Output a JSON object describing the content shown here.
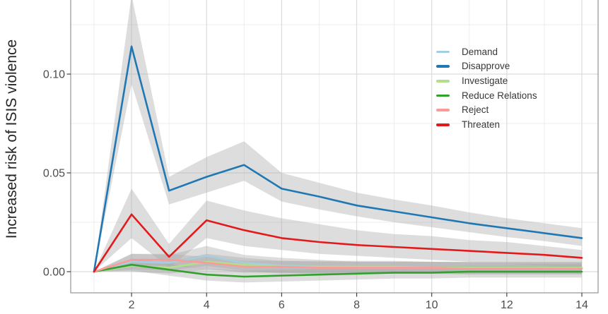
{
  "chart_data": {
    "type": "line",
    "title": "",
    "xlabel": "",
    "ylabel": "Increased risk of ISIS violence",
    "grid": "major and minor gridlines on white panel",
    "legend_position": "inside top-right",
    "band_fill": "#ababab",
    "band_opacity": 0.4,
    "x": [
      1,
      2,
      3,
      4,
      5,
      6,
      7,
      8,
      9,
      10,
      11,
      12,
      13,
      14
    ],
    "x_domain": [
      1,
      14
    ],
    "x_tick_values": [
      2,
      4,
      6,
      8,
      10,
      12,
      14
    ],
    "x_tick_labels": [
      "2",
      "4",
      "6",
      "8",
      "10",
      "12",
      "14"
    ],
    "x_minor_values": [
      1,
      3,
      5,
      7,
      9,
      11,
      13
    ],
    "y_visible_range": [
      -0.011,
      0.1375
    ],
    "y_ticks": [
      {
        "value": 0.0,
        "label": "0.00"
      },
      {
        "value": 0.05,
        "label": "0.05"
      },
      {
        "value": 0.1,
        "label": "0.10"
      }
    ],
    "y_minor_values": [
      0.025,
      0.075,
      0.125
    ],
    "series": [
      {
        "name": "Demand",
        "color": "#a6cee3",
        "values": [
          0,
          0.005,
          0.0045,
          0.008,
          0.0045,
          0.003,
          0.0025,
          0.002,
          0.002,
          0.002,
          0.002,
          0.0015,
          0.0015,
          0.0015
        ],
        "lower": [
          0,
          0.001,
          0.0005,
          0.003,
          0.0005,
          -0.001,
          -0.001,
          -0.001,
          -0.001,
          -0.001,
          -0.001,
          -0.001,
          -0.001,
          -0.001
        ],
        "upper": [
          0,
          0.009,
          0.0085,
          0.013,
          0.0085,
          0.007,
          0.006,
          0.005,
          0.005,
          0.005,
          0.005,
          0.004,
          0.004,
          0.004
        ]
      },
      {
        "name": "Disapprove",
        "color": "#1f78b4",
        "values": [
          0,
          0.114,
          0.041,
          0.048,
          0.054,
          0.042,
          0.038,
          0.0335,
          0.0305,
          0.0275,
          0.0245,
          0.022,
          0.0195,
          0.017
        ],
        "lower": [
          0,
          0.095,
          0.034,
          0.04,
          0.046,
          0.0355,
          0.0315,
          0.028,
          0.025,
          0.0225,
          0.02,
          0.0175,
          0.0155,
          0.013
        ],
        "upper": [
          0,
          0.14,
          0.048,
          0.058,
          0.066,
          0.05,
          0.045,
          0.04,
          0.0365,
          0.0335,
          0.03,
          0.027,
          0.0245,
          0.022
        ]
      },
      {
        "name": "Investigate",
        "color": "#b2df8a",
        "values": [
          0,
          0.003,
          0.002,
          0.005,
          0.0035,
          0.0025,
          0.0025,
          0.0025,
          0.0025,
          0.002,
          0.002,
          0.002,
          0.002,
          0.002
        ],
        "lower": [
          0,
          0.0,
          -0.001,
          0.001,
          0.0,
          -0.0005,
          -0.0005,
          -0.0005,
          -0.0005,
          -0.001,
          -0.001,
          -0.001,
          -0.001,
          -0.001
        ],
        "upper": [
          0,
          0.006,
          0.005,
          0.009,
          0.007,
          0.0055,
          0.0055,
          0.0055,
          0.0055,
          0.005,
          0.005,
          0.005,
          0.005,
          0.005
        ]
      },
      {
        "name": "Reduce Relations",
        "color": "#33a02c",
        "values": [
          0,
          0.0035,
          0.001,
          -0.0015,
          -0.0025,
          -0.002,
          -0.0015,
          -0.001,
          -0.0005,
          -0.0005,
          0,
          0,
          0,
          0
        ],
        "lower": [
          0,
          0.0005,
          -0.002,
          -0.0045,
          -0.0055,
          -0.005,
          -0.0045,
          -0.004,
          -0.0035,
          -0.0035,
          -0.003,
          -0.003,
          -0.003,
          -0.003
        ],
        "upper": [
          0,
          0.0065,
          0.004,
          0.0015,
          0.0005,
          0.001,
          0.0015,
          0.002,
          0.0025,
          0.0025,
          0.003,
          0.003,
          0.003,
          0.003
        ]
      },
      {
        "name": "Reject",
        "color": "#fb9a99",
        "values": [
          0,
          0.006,
          0.006,
          0.0045,
          0.0025,
          0.0025,
          0.002,
          0.002,
          0.002,
          0.002,
          0.0015,
          0.0015,
          0.0015,
          0.0015
        ],
        "lower": [
          0,
          0.003,
          0.003,
          0.0015,
          -0.0005,
          -0.0005,
          -0.001,
          -0.001,
          -0.001,
          -0.001,
          -0.0015,
          -0.0015,
          -0.0015,
          -0.0015
        ],
        "upper": [
          0,
          0.009,
          0.009,
          0.0075,
          0.0055,
          0.0055,
          0.005,
          0.005,
          0.005,
          0.005,
          0.0045,
          0.0045,
          0.0045,
          0.0045
        ]
      },
      {
        "name": "Threaten",
        "color": "#e31a1c",
        "values": [
          0,
          0.029,
          0.0075,
          0.026,
          0.021,
          0.017,
          0.015,
          0.0135,
          0.0125,
          0.0115,
          0.0105,
          0.0095,
          0.0085,
          0.007
        ],
        "lower": [
          0,
          0.017,
          0.002,
          0.017,
          0.013,
          0.011,
          0.009,
          0.008,
          0.007,
          0.006,
          0.005,
          0.004,
          0.003,
          0.002
        ],
        "upper": [
          0,
          0.042,
          0.014,
          0.036,
          0.031,
          0.027,
          0.024,
          0.021,
          0.019,
          0.018,
          0.016,
          0.015,
          0.013,
          0.011
        ]
      }
    ]
  }
}
